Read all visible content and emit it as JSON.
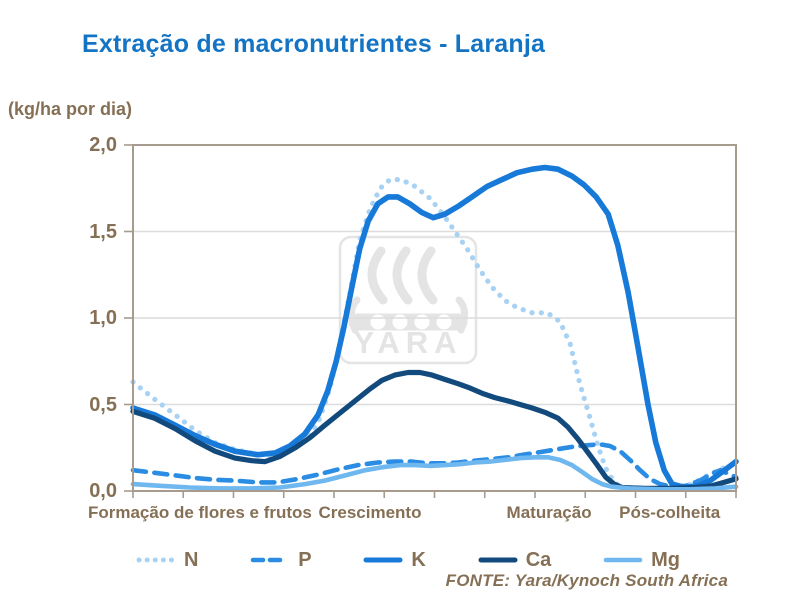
{
  "page": {
    "title": "Extração de macronutrientes - Laranja",
    "unit_label": "(kg/ha por dia)",
    "source": "FONTE: Yara/Kynoch  South Africa"
  },
  "watermark": {
    "text": "YARA",
    "icon": "yara-viking-ship-logo",
    "color": "#E4E4E4"
  },
  "colors": {
    "title_blue": "#1474C4",
    "axis_text_brown": "#857055",
    "axis_line": "#A79B8D",
    "gridline": "#DCDCDC"
  },
  "chart_data": {
    "type": "line",
    "title": "Extração de macronutrientes - Laranja",
    "xlabel": "",
    "ylabel": "(kg/ha por dia)",
    "ylim": [
      0,
      2
    ],
    "y_tick_values": [
      0,
      0.5,
      1,
      1.5,
      2
    ],
    "y_tick_labels": [
      "0,0",
      "0,5",
      "1,0",
      "1,5",
      "2,0"
    ],
    "grid": "horizontal",
    "legend_position": "bottom",
    "x_minor_tick_count": 12,
    "x_stages": [
      {
        "label": "Formação de flores e frutos",
        "center": 0.111
      },
      {
        "label": "Crescimento",
        "center": 0.393
      },
      {
        "label": "Maturação",
        "center": 0.69
      },
      {
        "label": "Pós-colheita",
        "center": 0.89
      }
    ],
    "series": [
      {
        "name": "N",
        "style": "dotted",
        "color": "#A8D2F4",
        "stroke_width": 5.2,
        "points": [
          [
            0.0,
            0.63
          ],
          [
            0.036,
            0.53
          ],
          [
            0.07,
            0.44
          ],
          [
            0.103,
            0.35
          ],
          [
            0.136,
            0.28
          ],
          [
            0.169,
            0.24
          ],
          [
            0.202,
            0.215
          ],
          [
            0.224,
            0.205
          ],
          [
            0.257,
            0.23
          ],
          [
            0.29,
            0.3
          ],
          [
            0.31,
            0.42
          ],
          [
            0.327,
            0.6
          ],
          [
            0.343,
            0.85
          ],
          [
            0.36,
            1.15
          ],
          [
            0.376,
            1.45
          ],
          [
            0.393,
            1.63
          ],
          [
            0.41,
            1.75
          ],
          [
            0.426,
            1.8
          ],
          [
            0.443,
            1.8
          ],
          [
            0.464,
            1.77
          ],
          [
            0.493,
            1.69
          ],
          [
            0.514,
            1.6
          ],
          [
            0.534,
            1.5
          ],
          [
            0.554,
            1.4
          ],
          [
            0.575,
            1.28
          ],
          [
            0.595,
            1.18
          ],
          [
            0.617,
            1.1
          ],
          [
            0.637,
            1.06
          ],
          [
            0.662,
            1.03
          ],
          [
            0.687,
            1.03
          ],
          [
            0.708,
            0.98
          ],
          [
            0.725,
            0.85
          ],
          [
            0.741,
            0.62
          ],
          [
            0.758,
            0.42
          ],
          [
            0.771,
            0.26
          ],
          [
            0.784,
            0.13
          ],
          [
            0.798,
            0.05
          ],
          [
            0.811,
            0.02
          ],
          [
            0.841,
            0.01
          ],
          [
            0.874,
            0.01
          ],
          [
            0.907,
            0.015
          ],
          [
            0.932,
            0.05
          ],
          [
            0.953,
            0.09
          ],
          [
            0.977,
            0.13
          ],
          [
            1.0,
            0.16
          ]
        ]
      },
      {
        "name": "P",
        "style": "dashed",
        "color": "#2B8CE3",
        "stroke_width": 4.6,
        "points": [
          [
            0.0,
            0.12
          ],
          [
            0.036,
            0.105
          ],
          [
            0.07,
            0.09
          ],
          [
            0.103,
            0.075
          ],
          [
            0.136,
            0.065
          ],
          [
            0.169,
            0.06
          ],
          [
            0.207,
            0.05
          ],
          [
            0.24,
            0.05
          ],
          [
            0.274,
            0.07
          ],
          [
            0.307,
            0.095
          ],
          [
            0.34,
            0.125
          ],
          [
            0.373,
            0.15
          ],
          [
            0.406,
            0.165
          ],
          [
            0.434,
            0.17
          ],
          [
            0.463,
            0.17
          ],
          [
            0.489,
            0.16
          ],
          [
            0.514,
            0.16
          ],
          [
            0.539,
            0.165
          ],
          [
            0.567,
            0.175
          ],
          [
            0.595,
            0.185
          ],
          [
            0.622,
            0.195
          ],
          [
            0.648,
            0.21
          ],
          [
            0.675,
            0.225
          ],
          [
            0.701,
            0.24
          ],
          [
            0.728,
            0.255
          ],
          [
            0.755,
            0.265
          ],
          [
            0.774,
            0.27
          ],
          [
            0.791,
            0.26
          ],
          [
            0.808,
            0.23
          ],
          [
            0.824,
            0.18
          ],
          [
            0.841,
            0.12
          ],
          [
            0.857,
            0.07
          ],
          [
            0.874,
            0.04
          ],
          [
            0.894,
            0.025
          ],
          [
            0.917,
            0.03
          ],
          [
            0.94,
            0.06
          ],
          [
            0.96,
            0.1
          ],
          [
            0.974,
            0.12
          ],
          [
            0.987,
            0.1
          ],
          [
            1.0,
            0.08
          ]
        ]
      },
      {
        "name": "K",
        "style": "solid",
        "color": "#1779D8",
        "stroke_width": 5.6,
        "points": [
          [
            0.0,
            0.48
          ],
          [
            0.036,
            0.44
          ],
          [
            0.07,
            0.38
          ],
          [
            0.103,
            0.32
          ],
          [
            0.136,
            0.27
          ],
          [
            0.169,
            0.23
          ],
          [
            0.207,
            0.21
          ],
          [
            0.236,
            0.22
          ],
          [
            0.26,
            0.26
          ],
          [
            0.285,
            0.33
          ],
          [
            0.307,
            0.44
          ],
          [
            0.323,
            0.58
          ],
          [
            0.337,
            0.75
          ],
          [
            0.35,
            0.95
          ],
          [
            0.363,
            1.18
          ],
          [
            0.376,
            1.4
          ],
          [
            0.39,
            1.56
          ],
          [
            0.406,
            1.66
          ],
          [
            0.423,
            1.7
          ],
          [
            0.439,
            1.7
          ],
          [
            0.459,
            1.66
          ],
          [
            0.479,
            1.61
          ],
          [
            0.498,
            1.58
          ],
          [
            0.517,
            1.6
          ],
          [
            0.539,
            1.645
          ],
          [
            0.562,
            1.7
          ],
          [
            0.587,
            1.76
          ],
          [
            0.612,
            1.8
          ],
          [
            0.637,
            1.84
          ],
          [
            0.662,
            1.86
          ],
          [
            0.683,
            1.87
          ],
          [
            0.705,
            1.86
          ],
          [
            0.728,
            1.82
          ],
          [
            0.748,
            1.77
          ],
          [
            0.768,
            1.7
          ],
          [
            0.788,
            1.6
          ],
          [
            0.804,
            1.42
          ],
          [
            0.821,
            1.15
          ],
          [
            0.838,
            0.82
          ],
          [
            0.854,
            0.5
          ],
          [
            0.867,
            0.28
          ],
          [
            0.881,
            0.12
          ],
          [
            0.894,
            0.04
          ],
          [
            0.915,
            0.02
          ],
          [
            0.937,
            0.03
          ],
          [
            0.957,
            0.06
          ],
          [
            0.977,
            0.11
          ],
          [
            1.0,
            0.17
          ]
        ]
      },
      {
        "name": "Ca",
        "style": "solid",
        "color": "#124A7E",
        "stroke_width": 5.2,
        "points": [
          [
            0.0,
            0.46
          ],
          [
            0.036,
            0.42
          ],
          [
            0.07,
            0.36
          ],
          [
            0.103,
            0.29
          ],
          [
            0.136,
            0.23
          ],
          [
            0.169,
            0.19
          ],
          [
            0.197,
            0.175
          ],
          [
            0.219,
            0.17
          ],
          [
            0.244,
            0.2
          ],
          [
            0.269,
            0.25
          ],
          [
            0.294,
            0.31
          ],
          [
            0.318,
            0.38
          ],
          [
            0.343,
            0.45
          ],
          [
            0.368,
            0.52
          ],
          [
            0.393,
            0.59
          ],
          [
            0.413,
            0.64
          ],
          [
            0.434,
            0.67
          ],
          [
            0.456,
            0.685
          ],
          [
            0.476,
            0.685
          ],
          [
            0.496,
            0.67
          ],
          [
            0.517,
            0.645
          ],
          [
            0.539,
            0.62
          ],
          [
            0.559,
            0.595
          ],
          [
            0.579,
            0.565
          ],
          [
            0.6,
            0.54
          ],
          [
            0.622,
            0.52
          ],
          [
            0.642,
            0.5
          ],
          [
            0.662,
            0.48
          ],
          [
            0.683,
            0.455
          ],
          [
            0.705,
            0.42
          ],
          [
            0.721,
            0.37
          ],
          [
            0.738,
            0.3
          ],
          [
            0.755,
            0.22
          ],
          [
            0.77,
            0.15
          ],
          [
            0.784,
            0.08
          ],
          [
            0.798,
            0.04
          ],
          [
            0.811,
            0.02
          ],
          [
            0.849,
            0.015
          ],
          [
            0.891,
            0.015
          ],
          [
            0.932,
            0.02
          ],
          [
            0.96,
            0.03
          ],
          [
            0.98,
            0.05
          ],
          [
            1.0,
            0.07
          ]
        ]
      },
      {
        "name": "Mg",
        "style": "solid",
        "color": "#6FB7EF",
        "stroke_width": 4.6,
        "points": [
          [
            0.0,
            0.04
          ],
          [
            0.045,
            0.03
          ],
          [
            0.095,
            0.02
          ],
          [
            0.144,
            0.015
          ],
          [
            0.194,
            0.015
          ],
          [
            0.244,
            0.02
          ],
          [
            0.285,
            0.04
          ],
          [
            0.318,
            0.06
          ],
          [
            0.352,
            0.09
          ],
          [
            0.385,
            0.12
          ],
          [
            0.418,
            0.14
          ],
          [
            0.443,
            0.15
          ],
          [
            0.468,
            0.15
          ],
          [
            0.493,
            0.145
          ],
          [
            0.517,
            0.15
          ],
          [
            0.542,
            0.155
          ],
          [
            0.567,
            0.165
          ],
          [
            0.592,
            0.17
          ],
          [
            0.617,
            0.18
          ],
          [
            0.642,
            0.19
          ],
          [
            0.667,
            0.195
          ],
          [
            0.688,
            0.195
          ],
          [
            0.708,
            0.18
          ],
          [
            0.728,
            0.15
          ],
          [
            0.745,
            0.11
          ],
          [
            0.761,
            0.07
          ],
          [
            0.778,
            0.04
          ],
          [
            0.794,
            0.025
          ],
          [
            0.824,
            0.015
          ],
          [
            0.874,
            0.01
          ],
          [
            0.924,
            0.01
          ],
          [
            0.965,
            0.015
          ],
          [
            1.0,
            0.025
          ]
        ]
      }
    ]
  }
}
